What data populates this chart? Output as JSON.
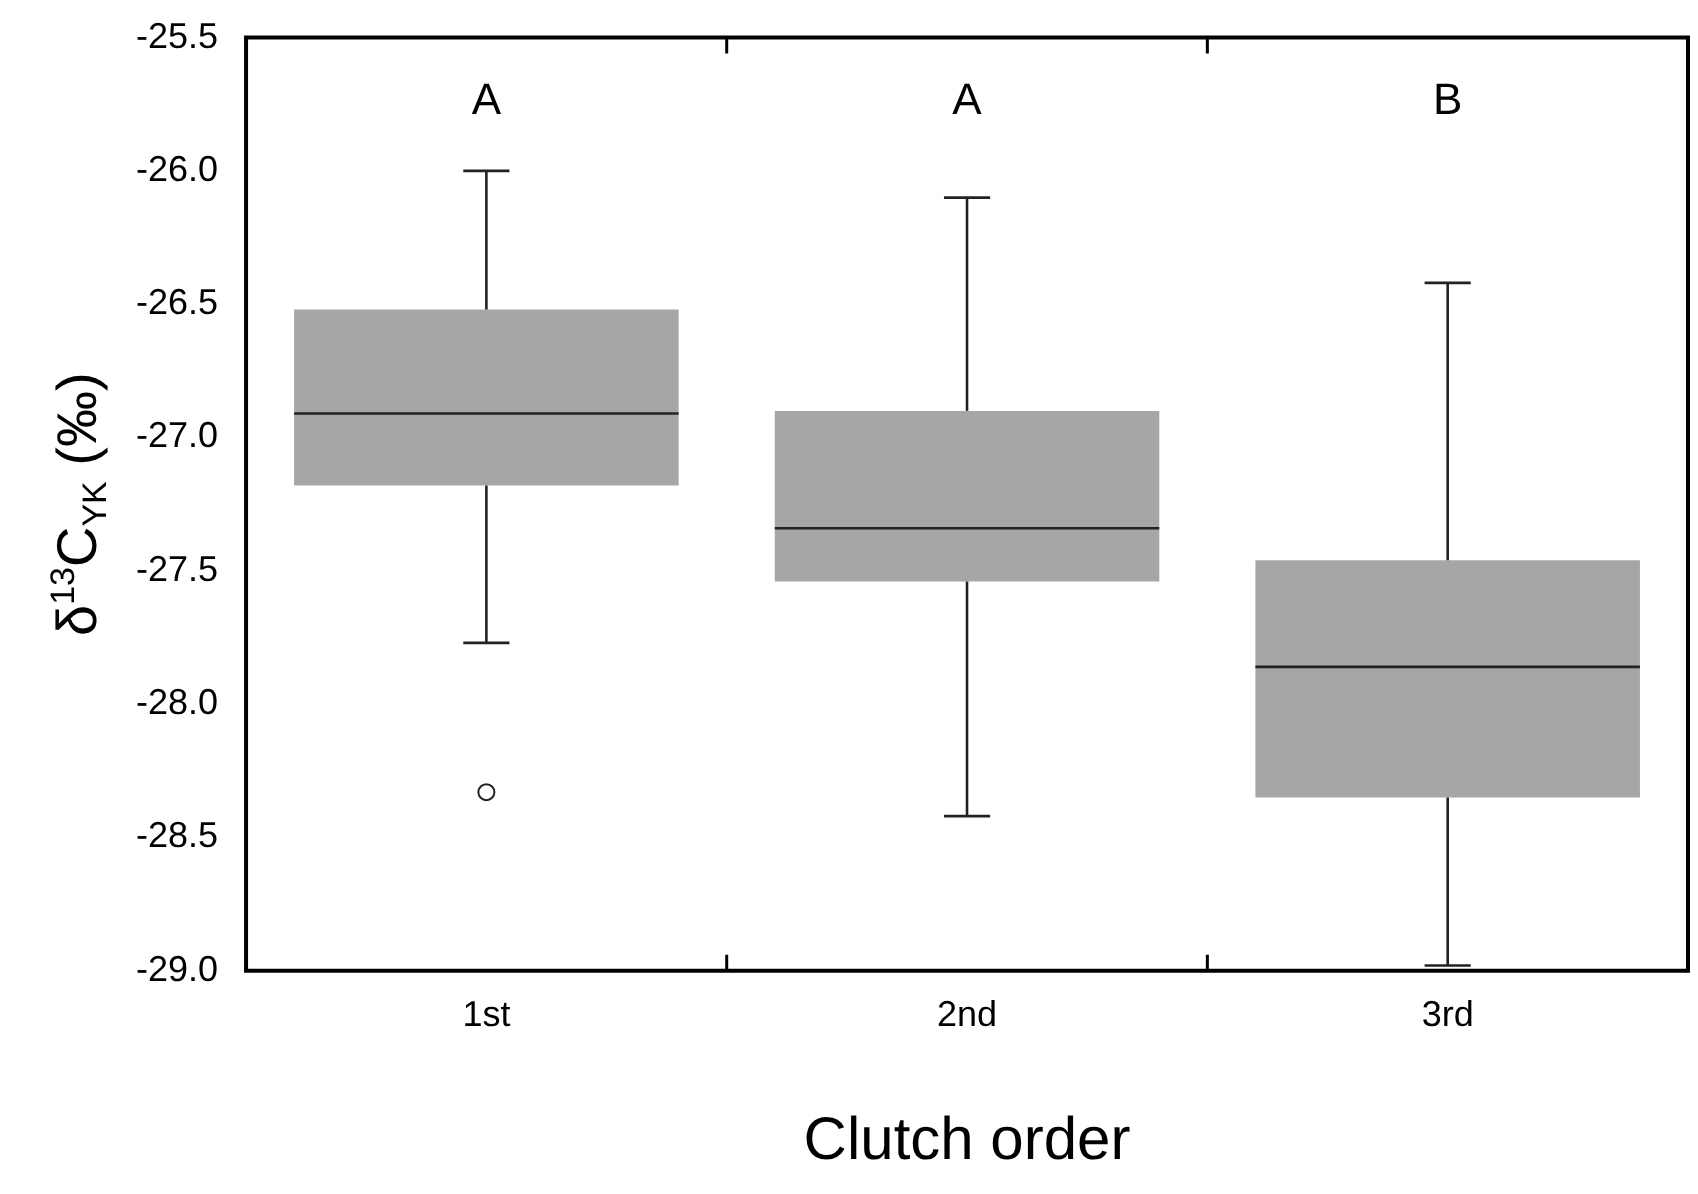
{
  "chart_data": {
    "type": "box",
    "xlabel": "Clutch order",
    "ylabel": "δ$^{13}$C$_{YK}$ (‰)",
    "categories": [
      "1st",
      "2nd",
      "3rd"
    ],
    "color": "#a6a6a6",
    "boxes": [
      {
        "low": -27.77,
        "q1": -27.18,
        "median": -26.91,
        "q3": -26.52,
        "high": -26.0,
        "outliers": [
          -28.33
        ]
      },
      {
        "low": -28.42,
        "q1": -27.54,
        "median": -27.34,
        "q3": -26.9,
        "high": -26.1
      },
      {
        "low": -28.98,
        "q1": -28.35,
        "median": -27.86,
        "q3": -27.46,
        "high": -26.42
      }
    ],
    "ylim": [
      -29.0,
      -25.5
    ],
    "yticks": [
      {
        "value": -29,
        "label": "-29.0"
      },
      {
        "value": -28.5,
        "label": "-28.5"
      },
      {
        "value": -28,
        "label": "-28.0"
      },
      {
        "value": -27.5,
        "label": "-27.5"
      },
      {
        "value": -27,
        "label": "-27.0"
      },
      {
        "value": -26.5,
        "label": "-26.5"
      },
      {
        "value": -26,
        "label": "-26.0"
      },
      {
        "value": -25.5,
        "label": "-25.5"
      }
    ],
    "annotations": [
      "A",
      "A",
      "B"
    ],
    "grid": false,
    "legend": false
  }
}
